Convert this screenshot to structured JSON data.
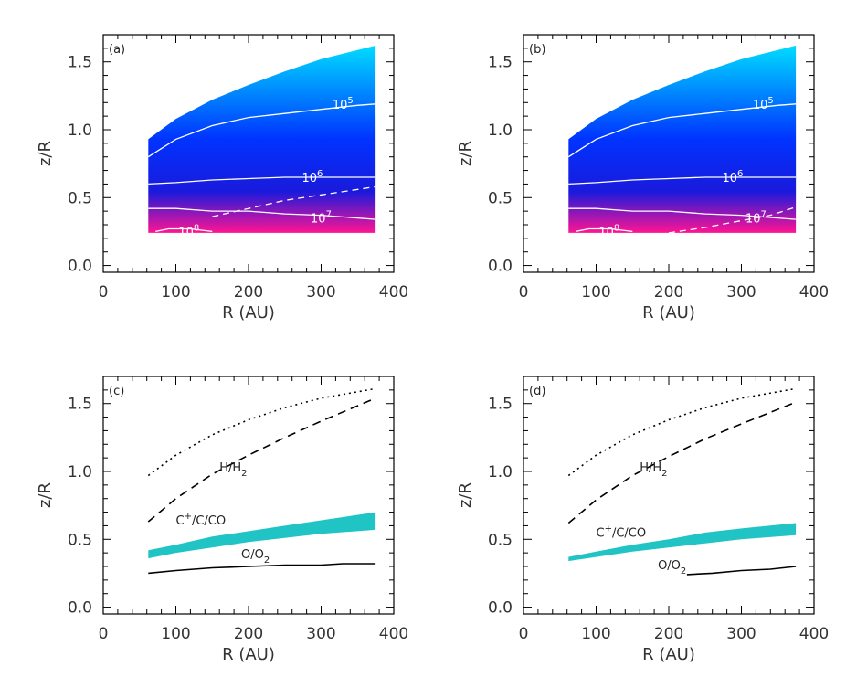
{
  "chart_data": [
    {
      "type": "heatmap",
      "panel_label": "(a)",
      "xlabel": "R (AU)",
      "ylabel": "z/R",
      "xlim": [
        0,
        400
      ],
      "ylim": [
        -0.05,
        1.7
      ],
      "xticks": [
        "0",
        "100",
        "200",
        "300",
        "400"
      ],
      "yticks": [
        "0.0",
        "0.5",
        "1.0",
        "1.5"
      ],
      "colormap": [
        "#ff1493",
        "#1a1adc",
        "#0033ff",
        "#00dcff"
      ],
      "disk_extent": {
        "r": [
          62,
          375
        ],
        "z_lower": 0.24,
        "z_upper_at_r": [
          [
            62,
            0.93
          ],
          [
            100,
            1.08
          ],
          [
            150,
            1.22
          ],
          [
            200,
            1.33
          ],
          [
            250,
            1.43
          ],
          [
            300,
            1.52
          ],
          [
            375,
            1.62
          ]
        ]
      },
      "contours": [
        {
          "label": "10",
          "exp": "5",
          "style": "solid",
          "points": [
            [
              62,
              0.8
            ],
            [
              100,
              0.93
            ],
            [
              150,
              1.03
            ],
            [
              200,
              1.09
            ],
            [
              250,
              1.12
            ],
            [
              300,
              1.15
            ],
            [
              350,
              1.18
            ],
            [
              375,
              1.19
            ]
          ],
          "label_at": [
            330,
            1.19
          ]
        },
        {
          "label": "10",
          "exp": "6",
          "style": "solid",
          "points": [
            [
              62,
              0.6
            ],
            [
              100,
              0.61
            ],
            [
              150,
              0.63
            ],
            [
              200,
              0.64
            ],
            [
              250,
              0.65
            ],
            [
              300,
              0.65
            ],
            [
              375,
              0.65
            ]
          ],
          "label_at": [
            288,
            0.65
          ]
        },
        {
          "label": "10",
          "exp": "7",
          "style": "solid",
          "points": [
            [
              62,
              0.42
            ],
            [
              100,
              0.42
            ],
            [
              150,
              0.4
            ],
            [
              200,
              0.4
            ],
            [
              250,
              0.38
            ],
            [
              300,
              0.37
            ],
            [
              375,
              0.34
            ]
          ],
          "label_at": [
            300,
            0.35
          ]
        },
        {
          "label": "10",
          "exp": "8",
          "style": "solid",
          "points": [
            [
              72,
              0.25
            ],
            [
              90,
              0.27
            ],
            [
              120,
              0.27
            ],
            [
              150,
              0.25
            ]
          ],
          "label_at": [
            118,
            0.25
          ]
        },
        {
          "label": "",
          "exp": "",
          "style": "dashed",
          "points": [
            [
              150,
              0.36
            ],
            [
              200,
              0.42
            ],
            [
              250,
              0.48
            ],
            [
              300,
              0.52
            ],
            [
              375,
              0.58
            ]
          ],
          "label_at": null
        }
      ]
    },
    {
      "type": "heatmap",
      "panel_label": "(b)",
      "xlabel": "R (AU)",
      "ylabel": "z/R",
      "xlim": [
        0,
        400
      ],
      "ylim": [
        -0.05,
        1.7
      ],
      "xticks": [
        "0",
        "100",
        "200",
        "300",
        "400"
      ],
      "yticks": [
        "0.0",
        "0.5",
        "1.0",
        "1.5"
      ],
      "colormap": [
        "#ff1493",
        "#1a1adc",
        "#0033ff",
        "#00dcff"
      ],
      "disk_extent": {
        "r": [
          62,
          375
        ],
        "z_lower": 0.24,
        "z_upper_at_r": [
          [
            62,
            0.93
          ],
          [
            100,
            1.08
          ],
          [
            150,
            1.22
          ],
          [
            200,
            1.33
          ],
          [
            250,
            1.43
          ],
          [
            300,
            1.52
          ],
          [
            375,
            1.62
          ]
        ]
      },
      "contours": [
        {
          "label": "10",
          "exp": "5",
          "style": "solid",
          "points": [
            [
              62,
              0.8
            ],
            [
              100,
              0.93
            ],
            [
              150,
              1.03
            ],
            [
              200,
              1.09
            ],
            [
              250,
              1.12
            ],
            [
              300,
              1.15
            ],
            [
              350,
              1.18
            ],
            [
              375,
              1.19
            ]
          ],
          "label_at": [
            330,
            1.19
          ]
        },
        {
          "label": "10",
          "exp": "6",
          "style": "solid",
          "points": [
            [
              62,
              0.6
            ],
            [
              100,
              0.61
            ],
            [
              150,
              0.63
            ],
            [
              200,
              0.64
            ],
            [
              250,
              0.65
            ],
            [
              300,
              0.65
            ],
            [
              375,
              0.65
            ]
          ],
          "label_at": [
            288,
            0.65
          ]
        },
        {
          "label": "10",
          "exp": "7",
          "style": "solid",
          "points": [
            [
              62,
              0.42
            ],
            [
              100,
              0.42
            ],
            [
              150,
              0.4
            ],
            [
              200,
              0.4
            ],
            [
              250,
              0.38
            ],
            [
              300,
              0.37
            ],
            [
              375,
              0.34
            ]
          ],
          "label_at": [
            320,
            0.35
          ]
        },
        {
          "label": "10",
          "exp": "8",
          "style": "solid",
          "points": [
            [
              72,
              0.25
            ],
            [
              90,
              0.27
            ],
            [
              120,
              0.27
            ],
            [
              150,
              0.25
            ]
          ],
          "label_at": [
            118,
            0.25
          ]
        },
        {
          "label": "",
          "exp": "",
          "style": "dashed",
          "points": [
            [
              200,
              0.24
            ],
            [
              250,
              0.28
            ],
            [
              300,
              0.33
            ],
            [
              340,
              0.37
            ],
            [
              375,
              0.43
            ]
          ],
          "label_at": null
        }
      ]
    },
    {
      "type": "line",
      "panel_label": "(c)",
      "xlabel": "R (AU)",
      "ylabel": "z/R",
      "xlim": [
        0,
        400
      ],
      "ylim": [
        -0.05,
        1.7
      ],
      "xticks": [
        "0",
        "100",
        "200",
        "300",
        "400"
      ],
      "yticks": [
        "0.0",
        "0.5",
        "1.0",
        "1.5"
      ],
      "series": [
        {
          "style": "dotted",
          "points": [
            [
              62,
              0.97
            ],
            [
              100,
              1.12
            ],
            [
              150,
              1.27
            ],
            [
              200,
              1.38
            ],
            [
              250,
              1.47
            ],
            [
              300,
              1.54
            ],
            [
              375,
              1.61
            ]
          ]
        },
        {
          "style": "dashed",
          "points": [
            [
              62,
              0.63
            ],
            [
              100,
              0.8
            ],
            [
              150,
              0.98
            ],
            [
              200,
              1.12
            ],
            [
              250,
              1.25
            ],
            [
              300,
              1.37
            ],
            [
              375,
              1.54
            ]
          ]
        },
        {
          "style": "solid",
          "points": [
            [
              62,
              0.25
            ],
            [
              100,
              0.27
            ],
            [
              150,
              0.29
            ],
            [
              200,
              0.3
            ],
            [
              250,
              0.31
            ],
            [
              300,
              0.31
            ],
            [
              330,
              0.32
            ],
            [
              375,
              0.32
            ]
          ]
        }
      ],
      "band": {
        "color": "#20c4c4",
        "upper": [
          [
            62,
            0.42
          ],
          [
            100,
            0.46
          ],
          [
            150,
            0.52
          ],
          [
            200,
            0.56
          ],
          [
            250,
            0.6
          ],
          [
            300,
            0.64
          ],
          [
            375,
            0.7
          ]
        ],
        "lower": [
          [
            62,
            0.36
          ],
          [
            100,
            0.4
          ],
          [
            150,
            0.44
          ],
          [
            200,
            0.48
          ],
          [
            250,
            0.51
          ],
          [
            300,
            0.54
          ],
          [
            375,
            0.57
          ]
        ]
      },
      "annotations": [
        {
          "text": "H/H",
          "sub": "2",
          "sup": "",
          "at": [
            160,
            1.0
          ]
        },
        {
          "text": "C",
          "sup": "+",
          "rest": "/C/CO",
          "at": [
            100,
            0.61
          ]
        },
        {
          "text": "O/O",
          "sub": "2",
          "sup": "",
          "at": [
            190,
            0.36
          ]
        }
      ]
    },
    {
      "type": "line",
      "panel_label": "(d)",
      "xlabel": "R (AU)",
      "ylabel": "z/R",
      "xlim": [
        0,
        400
      ],
      "ylim": [
        -0.05,
        1.7
      ],
      "xticks": [
        "0",
        "100",
        "200",
        "300",
        "400"
      ],
      "yticks": [
        "0.0",
        "0.5",
        "1.0",
        "1.5"
      ],
      "series": [
        {
          "style": "dotted",
          "points": [
            [
              62,
              0.97
            ],
            [
              100,
              1.12
            ],
            [
              150,
              1.27
            ],
            [
              200,
              1.38
            ],
            [
              250,
              1.47
            ],
            [
              300,
              1.54
            ],
            [
              375,
              1.61
            ]
          ]
        },
        {
          "style": "dashed",
          "points": [
            [
              62,
              0.62
            ],
            [
              100,
              0.79
            ],
            [
              150,
              0.97
            ],
            [
              200,
              1.11
            ],
            [
              250,
              1.24
            ],
            [
              300,
              1.35
            ],
            [
              375,
              1.51
            ]
          ]
        },
        {
          "style": "solid",
          "points": [
            [
              225,
              0.24
            ],
            [
              260,
              0.25
            ],
            [
              300,
              0.27
            ],
            [
              340,
              0.28
            ],
            [
              375,
              0.3
            ]
          ]
        }
      ],
      "band": {
        "color": "#20c4c4",
        "upper": [
          [
            62,
            0.37
          ],
          [
            100,
            0.41
          ],
          [
            150,
            0.46
          ],
          [
            200,
            0.5
          ],
          [
            250,
            0.55
          ],
          [
            300,
            0.58
          ],
          [
            375,
            0.62
          ]
        ],
        "lower": [
          [
            62,
            0.34
          ],
          [
            100,
            0.37
          ],
          [
            150,
            0.41
          ],
          [
            200,
            0.44
          ],
          [
            250,
            0.47
          ],
          [
            300,
            0.5
          ],
          [
            375,
            0.53
          ]
        ]
      },
      "annotations": [
        {
          "text": "H/H",
          "sub": "2",
          "sup": "",
          "at": [
            160,
            1.0
          ]
        },
        {
          "text": "C",
          "sup": "+",
          "rest": "/C/CO",
          "at": [
            100,
            0.52
          ]
        },
        {
          "text": "O/O",
          "sub": "2",
          "sup": "",
          "at": [
            185,
            0.28
          ]
        }
      ]
    }
  ]
}
